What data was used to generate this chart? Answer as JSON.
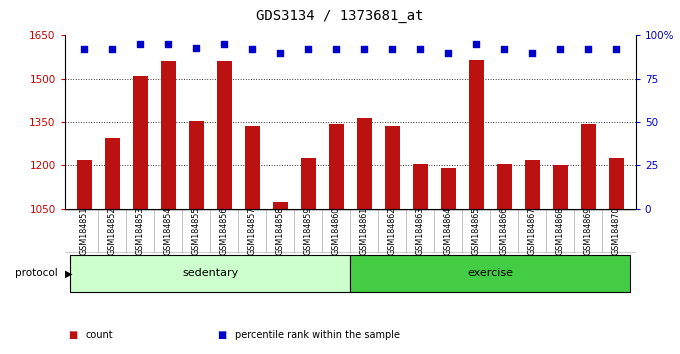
{
  "title": "GDS3134 / 1373681_at",
  "categories": [
    "GSM184851",
    "GSM184852",
    "GSM184853",
    "GSM184854",
    "GSM184855",
    "GSM184856",
    "GSM184857",
    "GSM184858",
    "GSM184859",
    "GSM184860",
    "GSM184861",
    "GSM184862",
    "GSM184863",
    "GSM184864",
    "GSM184865",
    "GSM184866",
    "GSM184867",
    "GSM184868",
    "GSM184869",
    "GSM184870"
  ],
  "bar_values": [
    1220,
    1295,
    1510,
    1560,
    1355,
    1560,
    1335,
    1075,
    1225,
    1345,
    1365,
    1335,
    1205,
    1190,
    1565,
    1205,
    1220,
    1200,
    1345,
    1225
  ],
  "percentile_values": [
    92,
    92,
    95,
    95,
    93,
    95,
    92,
    90,
    92,
    92,
    92,
    92,
    92,
    90,
    95,
    92,
    90,
    92,
    92,
    92
  ],
  "bar_color": "#bb1111",
  "percentile_color": "#0000cc",
  "ylim_left": [
    1050,
    1650
  ],
  "ylim_right": [
    0,
    100
  ],
  "yticks_left": [
    1050,
    1200,
    1350,
    1500,
    1650
  ],
  "yticks_right": [
    0,
    25,
    50,
    75,
    100
  ],
  "groups": [
    {
      "label": "sedentary",
      "start": 0,
      "end": 10,
      "color": "#ccffcc"
    },
    {
      "label": "exercise",
      "start": 10,
      "end": 20,
      "color": "#44cc44"
    }
  ],
  "protocol_label": "protocol",
  "legend_items": [
    {
      "color": "#bb1111",
      "label": "count"
    },
    {
      "color": "#0000cc",
      "label": "percentile rank within the sample"
    }
  ],
  "bg_color": "#ffffff",
  "plot_bg_color": "#ffffff",
  "tick_label_color_left": "#cc0000",
  "tick_label_color_right": "#0000cc",
  "grid_color": "#333333",
  "title_fontsize": 10,
  "axis_fontsize": 7.5,
  "bar_width": 0.55,
  "n": 20
}
